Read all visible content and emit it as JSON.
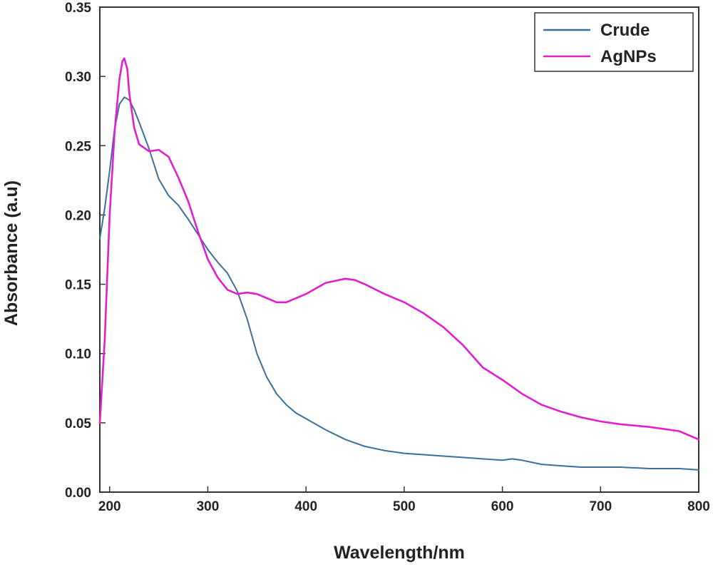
{
  "chart_data": {
    "type": "line",
    "title": "",
    "xlabel": "Wavelength/nm",
    "ylabel": "Absorbance (a.u)",
    "xlim": [
      190,
      800
    ],
    "ylim": [
      0,
      0.35
    ],
    "xticks": [
      200,
      300,
      400,
      500,
      600,
      700,
      800
    ],
    "yticks": [
      0.0,
      0.05,
      0.1,
      0.15,
      0.2,
      0.25,
      0.3,
      0.35
    ],
    "ytick_labels": [
      "0.00",
      "0.05",
      "0.10",
      "0.15",
      "0.20",
      "0.25",
      "0.30",
      "0.35"
    ],
    "xtick_labels": [
      "200",
      "300",
      "400",
      "500",
      "600",
      "700",
      "800"
    ],
    "grid": false,
    "legend": "top-right",
    "series": [
      {
        "name": "Crude",
        "color": "#3b6e9a",
        "x": [
          190,
          195,
          200,
          205,
          210,
          215,
          220,
          225,
          230,
          240,
          250,
          260,
          270,
          280,
          290,
          300,
          310,
          320,
          330,
          340,
          350,
          360,
          370,
          380,
          390,
          400,
          420,
          440,
          460,
          480,
          500,
          520,
          540,
          560,
          580,
          600,
          610,
          620,
          640,
          660,
          680,
          700,
          720,
          750,
          780,
          800
        ],
        "y": [
          0.183,
          0.205,
          0.232,
          0.262,
          0.28,
          0.285,
          0.283,
          0.276,
          0.267,
          0.248,
          0.226,
          0.214,
          0.207,
          0.197,
          0.186,
          0.175,
          0.166,
          0.158,
          0.145,
          0.125,
          0.1,
          0.083,
          0.071,
          0.063,
          0.057,
          0.053,
          0.045,
          0.038,
          0.033,
          0.03,
          0.028,
          0.027,
          0.026,
          0.025,
          0.024,
          0.023,
          0.024,
          0.023,
          0.02,
          0.019,
          0.018,
          0.018,
          0.018,
          0.017,
          0.017,
          0.016
        ]
      },
      {
        "name": "AgNPs",
        "color": "#e020d0",
        "x": [
          190,
          195,
          200,
          205,
          210,
          213,
          215,
          218,
          220,
          225,
          230,
          240,
          250,
          260,
          270,
          280,
          290,
          300,
          310,
          320,
          330,
          340,
          350,
          360,
          370,
          380,
          400,
          420,
          440,
          450,
          460,
          480,
          500,
          520,
          540,
          560,
          580,
          600,
          620,
          640,
          660,
          680,
          700,
          720,
          750,
          780,
          800
        ],
        "y": [
          0.05,
          0.11,
          0.2,
          0.26,
          0.298,
          0.311,
          0.313,
          0.305,
          0.288,
          0.263,
          0.251,
          0.246,
          0.247,
          0.242,
          0.227,
          0.21,
          0.188,
          0.168,
          0.155,
          0.146,
          0.143,
          0.144,
          0.143,
          0.14,
          0.137,
          0.137,
          0.143,
          0.151,
          0.154,
          0.153,
          0.15,
          0.143,
          0.137,
          0.129,
          0.119,
          0.106,
          0.09,
          0.081,
          0.071,
          0.063,
          0.058,
          0.054,
          0.051,
          0.049,
          0.047,
          0.044,
          0.038
        ]
      }
    ]
  }
}
